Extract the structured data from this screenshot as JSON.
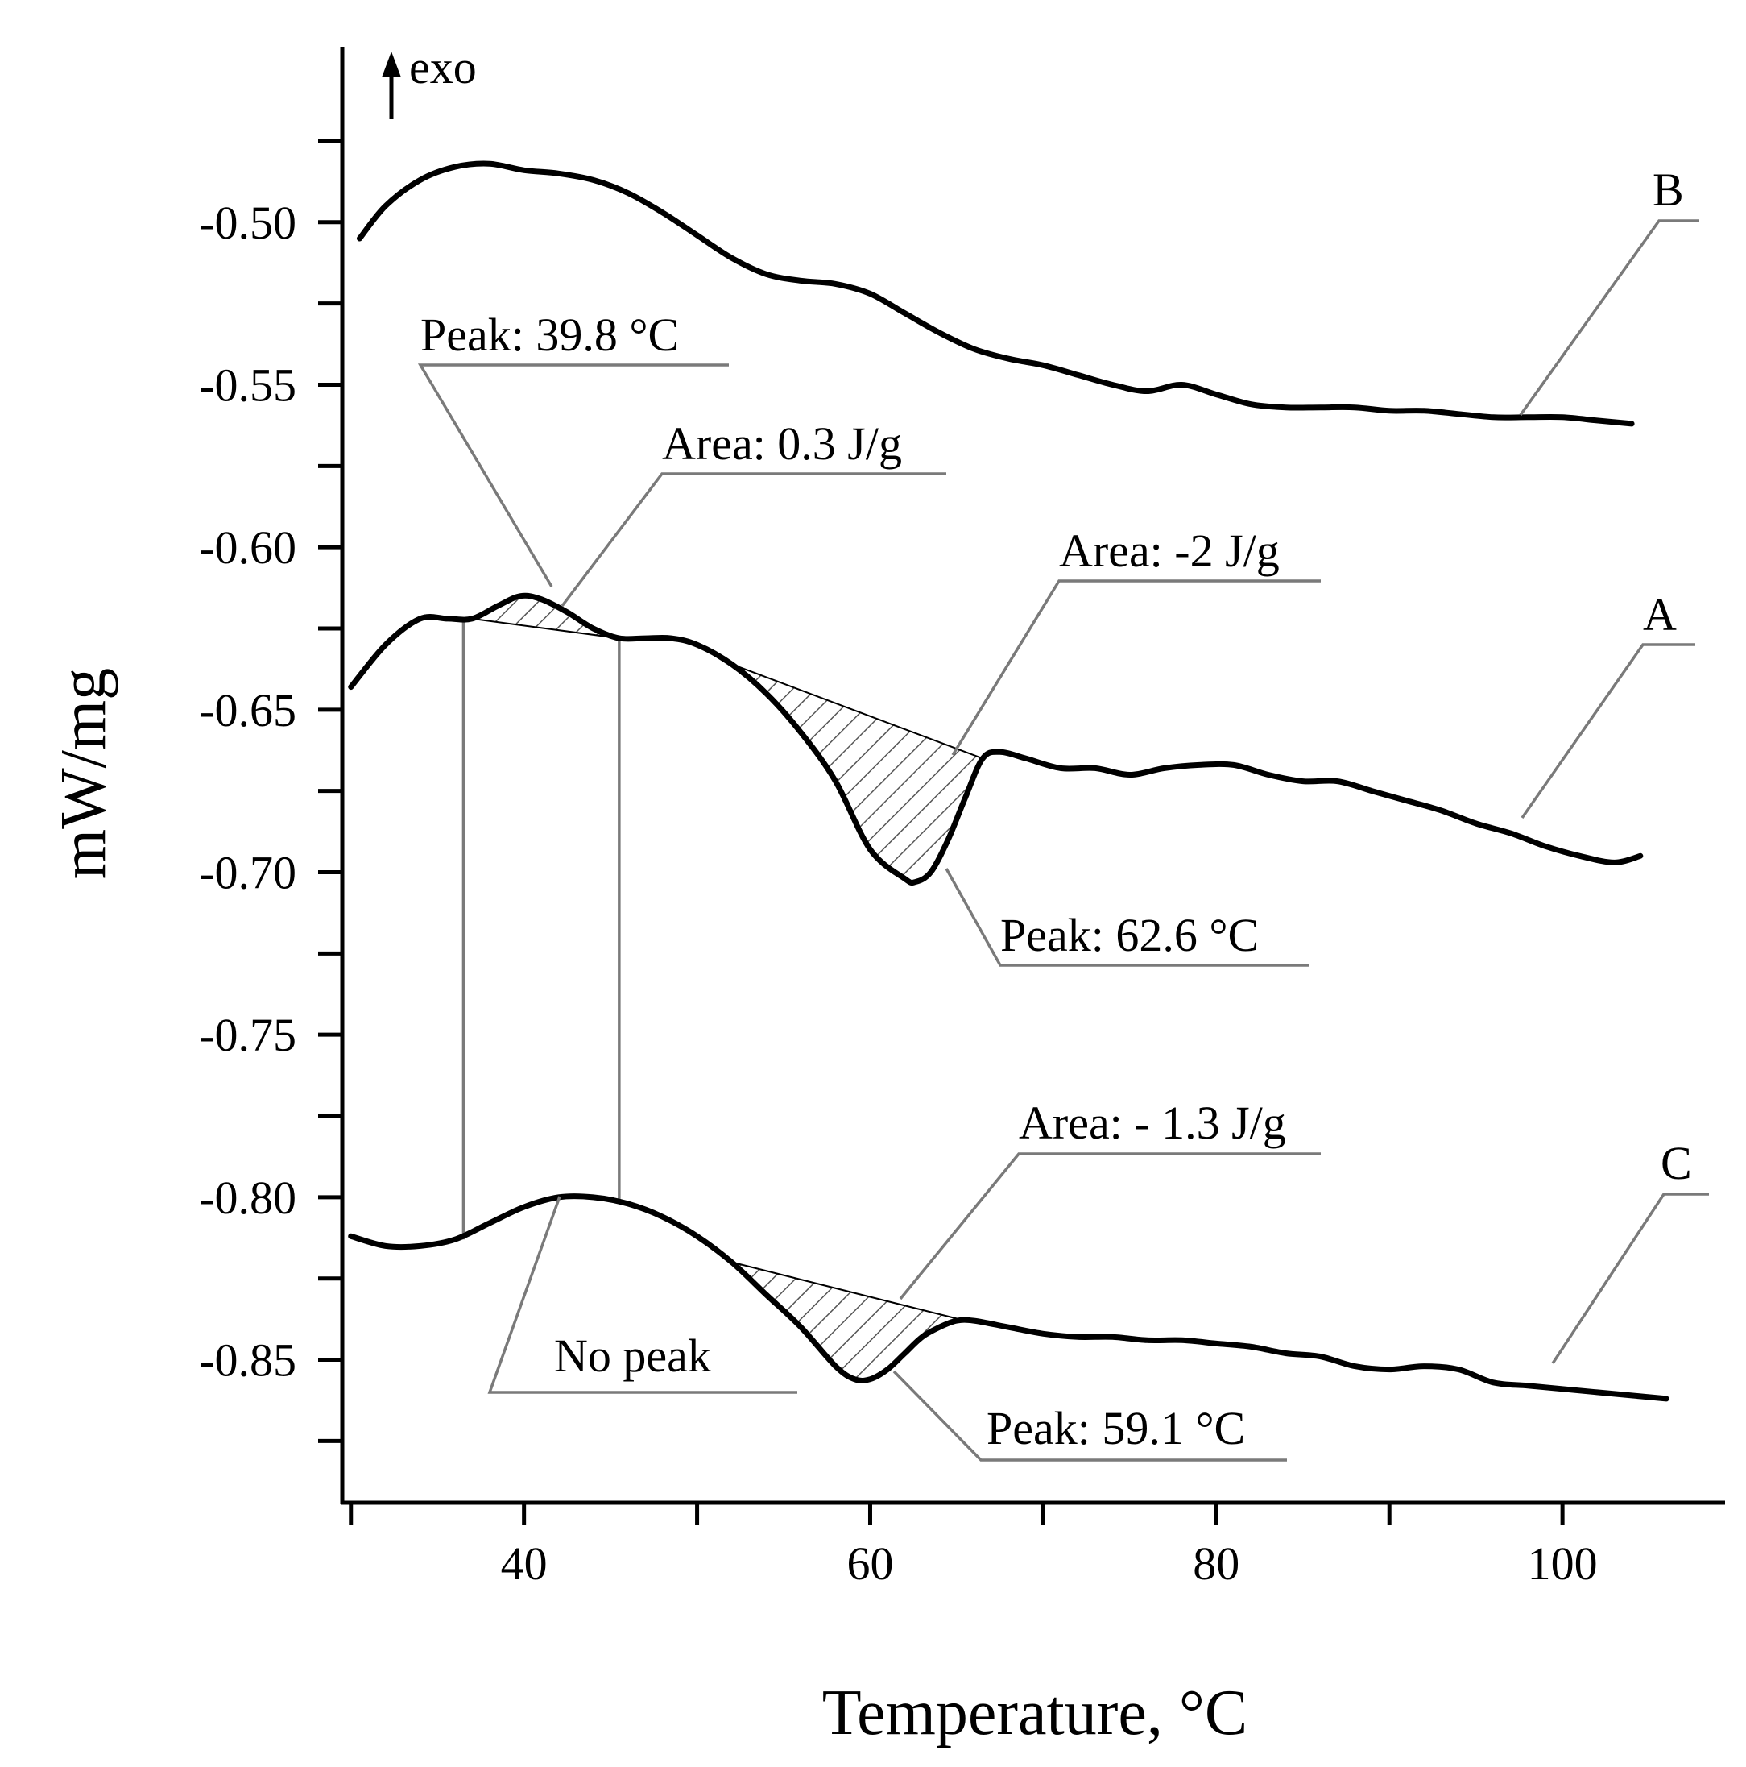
{
  "chart_data": {
    "type": "line",
    "title": "",
    "xlabel": "Temperature, °C",
    "ylabel": "mW/mg",
    "exo_label": "exo",
    "xlim": [
      29.5,
      109.3
    ],
    "ylim": [
      -0.894,
      -0.446
    ],
    "x_ticks": [
      30,
      40,
      50,
      60,
      70,
      80,
      90,
      100
    ],
    "x_tick_labels": [
      "",
      "40",
      "",
      "60",
      "",
      "80",
      "",
      "100"
    ],
    "y_ticks": [
      -0.475,
      -0.5,
      -0.525,
      -0.55,
      -0.575,
      -0.6,
      -0.625,
      -0.65,
      -0.675,
      -0.7,
      -0.725,
      -0.75,
      -0.775,
      -0.8,
      -0.825,
      -0.85,
      -0.875
    ],
    "y_tick_labels": [
      "",
      "-0.50",
      "",
      "-0.55",
      "",
      "-0.60",
      "",
      "-0.65",
      "",
      "-0.70",
      "",
      "-0.75",
      "",
      "-0.80",
      "",
      "-0.85",
      ""
    ],
    "series": [
      {
        "name": "B",
        "x": [
          30.5,
          32,
          34,
          36,
          38,
          40,
          42,
          44,
          46,
          48,
          50,
          52,
          54,
          56,
          58,
          60,
          62,
          64,
          66,
          68,
          70,
          72,
          74,
          76,
          78,
          80,
          82,
          84,
          86,
          88,
          90,
          92,
          94,
          96,
          98,
          100,
          102,
          104
        ],
        "y": [
          -0.505,
          -0.495,
          -0.487,
          -0.483,
          -0.482,
          -0.484,
          -0.485,
          -0.487,
          -0.491,
          -0.497,
          -0.504,
          -0.511,
          -0.516,
          -0.518,
          -0.519,
          -0.522,
          -0.528,
          -0.534,
          -0.539,
          -0.542,
          -0.544,
          -0.547,
          -0.55,
          -0.552,
          -0.55,
          -0.553,
          -0.556,
          -0.557,
          -0.557,
          -0.557,
          -0.558,
          -0.558,
          -0.559,
          -0.56,
          -0.56,
          -0.56,
          -0.561,
          -0.562
        ]
      },
      {
        "name": "A",
        "x": [
          30,
          32,
          34,
          35.6,
          37,
          38.5,
          39.8,
          41,
          42.5,
          44,
          45.5,
          47,
          48.5,
          50,
          52,
          54,
          56,
          58,
          60,
          62,
          62.6,
          63.5,
          64.5,
          65.5,
          66.5,
          67.5,
          69,
          71,
          73,
          75,
          77,
          79,
          81,
          83,
          85,
          87,
          89,
          91,
          93,
          95,
          97,
          99,
          101,
          103,
          104.5
        ],
        "y": [
          -0.643,
          -0.63,
          -0.622,
          -0.622,
          -0.622,
          -0.618,
          -0.615,
          -0.616,
          -0.62,
          -0.625,
          -0.628,
          -0.628,
          -0.628,
          -0.63,
          -0.636,
          -0.645,
          -0.657,
          -0.672,
          -0.693,
          -0.702,
          -0.703,
          -0.7,
          -0.69,
          -0.677,
          -0.665,
          -0.663,
          -0.665,
          -0.668,
          -0.668,
          -0.67,
          -0.668,
          -0.667,
          -0.667,
          -0.67,
          -0.672,
          -0.672,
          -0.675,
          -0.678,
          -0.681,
          -0.685,
          -0.688,
          -0.692,
          -0.695,
          -0.697,
          -0.695
        ]
      },
      {
        "name": "C",
        "x": [
          30,
          32,
          34,
          36,
          38,
          40,
          42,
          44,
          46,
          48,
          50,
          52,
          54,
          56,
          58,
          59.1,
          60,
          61,
          62,
          63,
          64,
          65,
          66,
          68,
          70,
          72,
          74,
          76,
          78,
          80,
          82,
          84,
          86,
          88,
          90,
          92,
          94,
          96,
          98,
          100,
          102,
          104,
          106
        ],
        "y": [
          -0.812,
          -0.815,
          -0.815,
          -0.813,
          -0.808,
          -0.803,
          -0.8,
          -0.8,
          -0.802,
          -0.806,
          -0.812,
          -0.82,
          -0.83,
          -0.84,
          -0.852,
          -0.856,
          -0.856,
          -0.853,
          -0.848,
          -0.843,
          -0.84,
          -0.838,
          -0.838,
          -0.84,
          -0.842,
          -0.843,
          -0.843,
          -0.844,
          -0.844,
          -0.845,
          -0.846,
          -0.848,
          -0.849,
          -0.852,
          -0.853,
          -0.852,
          -0.853,
          -0.857,
          -0.858,
          -0.859,
          -0.86,
          -0.861,
          -0.862
        ]
      }
    ],
    "annotations": [
      {
        "id": "peak-398",
        "text": "Peak: 39.8 °C"
      },
      {
        "id": "area-03",
        "text": "Area: 0.3 J/g"
      },
      {
        "id": "area-m2",
        "text": "Area: -2 J/g"
      },
      {
        "id": "peak-626",
        "text": "Peak: 62.6 °C"
      },
      {
        "id": "area-m13",
        "text": "Area: - 1.3 J/g"
      },
      {
        "id": "no-peak",
        "text": "No peak"
      },
      {
        "id": "peak-591",
        "text": "Peak: 59.1 °C"
      }
    ],
    "shaded_regions": [
      {
        "series": "A",
        "from": [
          37,
          -0.622
        ],
        "to": [
          45.5,
          -0.628
        ]
      },
      {
        "series": "A",
        "from": [
          52,
          -0.636
        ],
        "to": [
          66.5,
          -0.665
        ]
      },
      {
        "series": "C",
        "from": [
          52,
          -0.82
        ],
        "to": [
          65.5,
          -0.838
        ]
      }
    ],
    "vertical_markers": [
      {
        "x": 36.5,
        "y_top": -0.622,
        "y_bottom": -0.813
      },
      {
        "x": 45.5,
        "y_top": -0.628,
        "y_bottom": -0.802
      }
    ]
  }
}
